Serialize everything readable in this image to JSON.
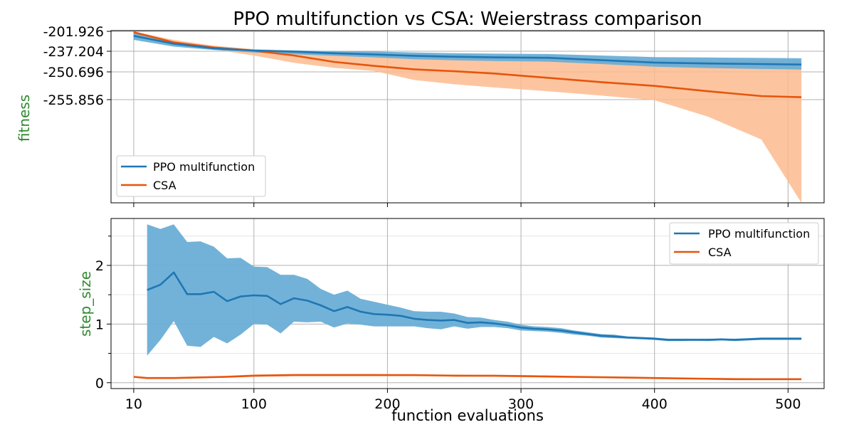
{
  "title": "PPO multifunction vs CSA: Weierstrass comparison",
  "xlabel": "function evaluations",
  "colors": {
    "ppo": "#1f77b4",
    "ppo_band": "#6baed6",
    "csa": "#e6550d",
    "csa_band": "#fdbb8e"
  },
  "chart_data": [
    {
      "type": "line",
      "ylabel": "fitness",
      "xlim": [
        -7,
        527
      ],
      "x_ticks": [
        10,
        100,
        200,
        300,
        400,
        500
      ],
      "y_ticks": [
        -201.926,
        -237.204,
        -250.696,
        -255.856
      ],
      "y_tick_labels": [
        "-201.926",
        "-237.204",
        "-250.696",
        "-255.856"
      ],
      "y_scale": "nonlinear (tick labels as printed)",
      "grid": true,
      "legend": "lower-left",
      "legend_entries": [
        "PPO multifunction",
        "CSA"
      ],
      "series": [
        {
          "name": "PPO multifunction",
          "x": [
            10,
            40,
            70,
            100,
            130,
            160,
            190,
            220,
            250,
            280,
            320,
            360,
            400,
            440,
            480,
            510
          ],
          "mean": [
            -210.0,
            -224.0,
            -232.0,
            -236.0,
            -237.5,
            -238.5,
            -239.3,
            -240.2,
            -240.8,
            -241.2,
            -241.5,
            -243.0,
            -244.6,
            -245.2,
            -245.6,
            -245.9
          ],
          "upper": [
            -205.0,
            -221.0,
            -230.0,
            -234.5,
            -235.8,
            -236.8,
            -237.4,
            -238.0,
            -238.5,
            -238.8,
            -239.0,
            -240.0,
            -241.0,
            -241.3,
            -241.6,
            -241.8
          ],
          "lower": [
            -217.0,
            -229.0,
            -235.0,
            -238.0,
            -239.2,
            -240.2,
            -241.2,
            -242.4,
            -243.1,
            -243.6,
            -244.0,
            -245.6,
            -247.3,
            -248.2,
            -248.8,
            -249.2
          ]
        },
        {
          "name": "CSA",
          "x": [
            10,
            40,
            70,
            100,
            130,
            160,
            190,
            220,
            250,
            280,
            320,
            360,
            400,
            440,
            480,
            510
          ],
          "mean": [
            -203.5,
            -221.5,
            -230.5,
            -236.2,
            -240.0,
            -244.2,
            -246.8,
            -249.0,
            -250.3,
            -251.0,
            -251.8,
            -252.6,
            -253.3,
            -254.3,
            -255.2,
            -255.4
          ],
          "upper": [
            -202.3,
            -217.0,
            -227.5,
            -233.4,
            -236.0,
            -238.1,
            -239.2,
            -240.2,
            -240.8,
            -241.2,
            -241.6,
            -242.1,
            -242.9,
            -243.2,
            -243.4,
            -243.6
          ],
          "lower": [
            -205.0,
            -225.5,
            -234.0,
            -240.0,
            -244.8,
            -248.1,
            -250.1,
            -252.2,
            -253.0,
            -253.6,
            -254.3,
            -255.1,
            -255.9,
            -257.2,
            -259.0,
            -264.0
          ]
        }
      ]
    },
    {
      "type": "line",
      "ylabel": "step_size",
      "xlim": [
        -7,
        527
      ],
      "ylim": [
        -0.1,
        2.8
      ],
      "x_ticks": [
        10,
        100,
        200,
        300,
        400,
        500
      ],
      "x_tick_labels": [
        "10",
        "100",
        "200",
        "300",
        "400",
        "500"
      ],
      "y_ticks": [
        0,
        1,
        2
      ],
      "y_tick_labels": [
        "0",
        "1",
        "2"
      ],
      "y_minor_ticks": [
        0.5,
        1.5,
        2.5
      ],
      "grid": true,
      "legend": "top-right",
      "legend_entries": [
        "PPO multifunction",
        "CSA"
      ],
      "series": [
        {
          "name": "PPO multifunction",
          "x": [
            20,
            30,
            40,
            50,
            60,
            70,
            80,
            90,
            100,
            110,
            120,
            130,
            140,
            150,
            160,
            170,
            180,
            190,
            200,
            210,
            220,
            230,
            240,
            250,
            260,
            270,
            280,
            290,
            300,
            310,
            320,
            330,
            340,
            350,
            360,
            370,
            380,
            390,
            400,
            410,
            420,
            430,
            440,
            450,
            460,
            470,
            480,
            490,
            500,
            510
          ],
          "mean": [
            1.58,
            1.67,
            1.88,
            1.51,
            1.51,
            1.55,
            1.39,
            1.47,
            1.49,
            1.48,
            1.34,
            1.44,
            1.4,
            1.32,
            1.22,
            1.29,
            1.21,
            1.17,
            1.16,
            1.14,
            1.09,
            1.07,
            1.06,
            1.07,
            1.02,
            1.03,
            1.01,
            0.98,
            0.94,
            0.92,
            0.91,
            0.89,
            0.86,
            0.83,
            0.8,
            0.79,
            0.77,
            0.76,
            0.75,
            0.73,
            0.73,
            0.73,
            0.73,
            0.74,
            0.73,
            0.74,
            0.75,
            0.75,
            0.75,
            0.75
          ],
          "upper": [
            2.7,
            2.62,
            2.7,
            2.4,
            2.41,
            2.32,
            2.12,
            2.13,
            1.98,
            1.97,
            1.84,
            1.84,
            1.77,
            1.6,
            1.5,
            1.57,
            1.43,
            1.38,
            1.33,
            1.28,
            1.22,
            1.21,
            1.21,
            1.18,
            1.12,
            1.11,
            1.07,
            1.04,
            0.99,
            0.96,
            0.95,
            0.93,
            0.89,
            0.86,
            0.83,
            0.82,
            0.79,
            0.78,
            0.77,
            0.75,
            0.75,
            0.75,
            0.75,
            0.75,
            0.75,
            0.76,
            0.77,
            0.77,
            0.77,
            0.77
          ],
          "lower": [
            0.46,
            0.73,
            1.05,
            0.63,
            0.61,
            0.78,
            0.67,
            0.82,
            1.0,
            0.99,
            0.84,
            1.04,
            1.03,
            1.04,
            0.94,
            1.01,
            0.99,
            0.96,
            0.96,
            0.96,
            0.96,
            0.93,
            0.91,
            0.96,
            0.92,
            0.95,
            0.95,
            0.93,
            0.89,
            0.88,
            0.87,
            0.85,
            0.82,
            0.8,
            0.77,
            0.76,
            0.75,
            0.74,
            0.73,
            0.71,
            0.71,
            0.72,
            0.71,
            0.72,
            0.71,
            0.72,
            0.73,
            0.73,
            0.73,
            0.73
          ]
        },
        {
          "name": "CSA",
          "x": [
            10,
            20,
            40,
            60,
            80,
            100,
            130,
            160,
            190,
            220,
            250,
            280,
            310,
            340,
            370,
            400,
            430,
            460,
            490,
            510
          ],
          "mean": [
            0.1,
            0.08,
            0.08,
            0.09,
            0.1,
            0.12,
            0.13,
            0.13,
            0.13,
            0.13,
            0.12,
            0.12,
            0.11,
            0.1,
            0.09,
            0.08,
            0.07,
            0.06,
            0.06,
            0.06
          ],
          "upper": [
            0.11,
            0.09,
            0.09,
            0.1,
            0.12,
            0.14,
            0.15,
            0.15,
            0.15,
            0.14,
            0.14,
            0.13,
            0.12,
            0.11,
            0.1,
            0.09,
            0.08,
            0.08,
            0.07,
            0.07
          ],
          "lower": [
            0.09,
            0.07,
            0.07,
            0.08,
            0.09,
            0.1,
            0.11,
            0.11,
            0.11,
            0.11,
            0.11,
            0.1,
            0.09,
            0.08,
            0.08,
            0.07,
            0.06,
            0.05,
            0.05,
            0.05
          ]
        }
      ]
    }
  ]
}
